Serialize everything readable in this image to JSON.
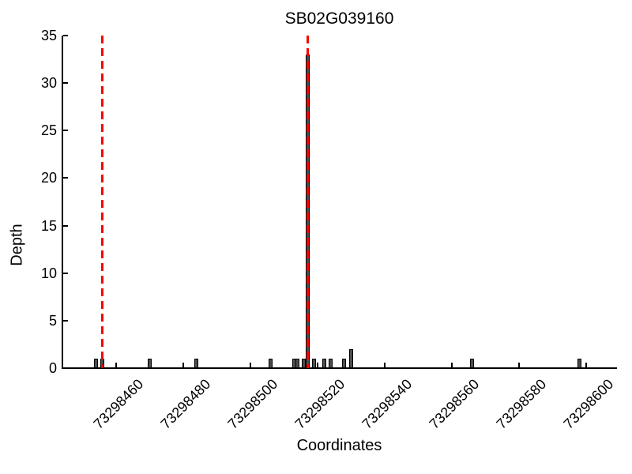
{
  "chart_data": {
    "type": "bar",
    "title": "SB02G039160",
    "xlabel": "Coordinates",
    "ylabel": "Depth",
    "xlim": [
      73298444,
      73298609
    ],
    "ylim": [
      0,
      35
    ],
    "x_ticks": [
      73298460,
      73298480,
      73298500,
      73298520,
      73298540,
      73298560,
      73298580,
      73298600
    ],
    "y_ticks": [
      0,
      5,
      10,
      15,
      20,
      25,
      30,
      35
    ],
    "grid": false,
    "legend": null,
    "bar_fill": "#4d4d4d",
    "bar_edge": "#000000",
    "highlight_color": "#ff0000",
    "bars": [
      {
        "x": 73298454,
        "depth": 1
      },
      {
        "x": 73298456,
        "depth": 1
      },
      {
        "x": 73298470,
        "depth": 1
      },
      {
        "x": 73298484,
        "depth": 1
      },
      {
        "x": 73298506,
        "depth": 1
      },
      {
        "x": 73298513,
        "depth": 1
      },
      {
        "x": 73298514,
        "depth": 1
      },
      {
        "x": 73298516,
        "depth": 1
      },
      {
        "x": 73298517,
        "depth": 33
      },
      {
        "x": 73298519,
        "depth": 1
      },
      {
        "x": 73298522,
        "depth": 1
      },
      {
        "x": 73298524,
        "depth": 1
      },
      {
        "x": 73298528,
        "depth": 1
      },
      {
        "x": 73298530,
        "depth": 2
      },
      {
        "x": 73298566,
        "depth": 1
      },
      {
        "x": 73298598,
        "depth": 1
      }
    ],
    "vlines": [
      {
        "x": 73298456,
        "color": "#ff0000",
        "style": "dashed"
      },
      {
        "x": 73298517,
        "color": "#ff0000",
        "style": "dashed"
      }
    ]
  }
}
